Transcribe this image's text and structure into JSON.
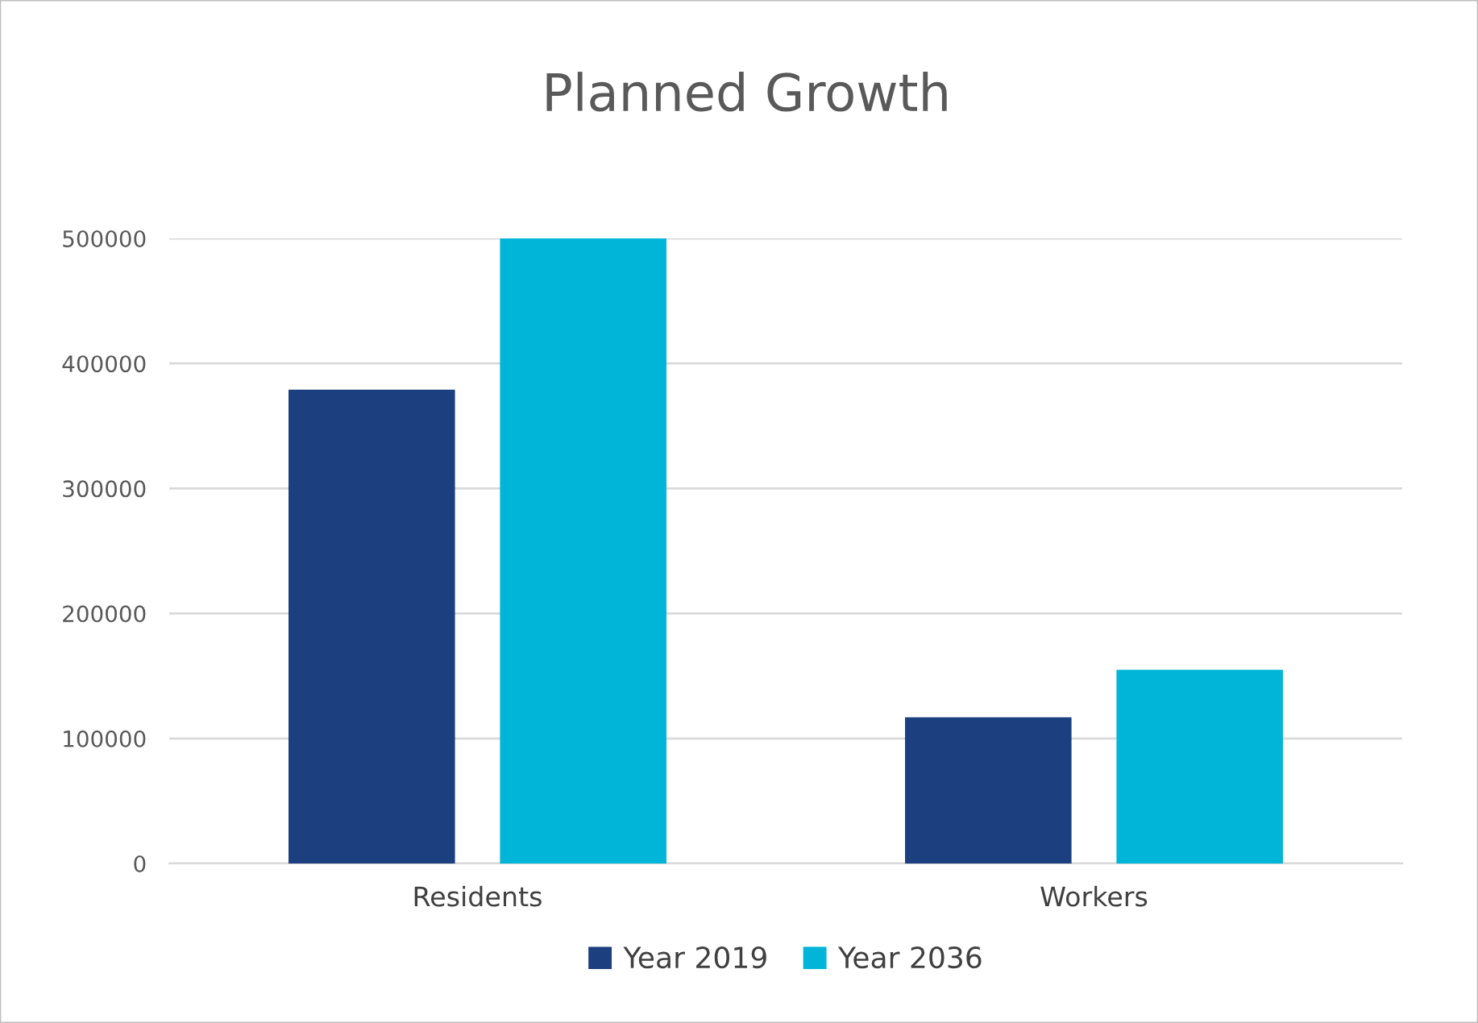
{
  "chart_data": {
    "type": "bar",
    "title": "Planned Growth",
    "categories": [
      "Residents",
      "Workers"
    ],
    "series": [
      {
        "name": "Year 2019",
        "color": "#1b3f7f",
        "values": [
          379000,
          117000
        ]
      },
      {
        "name": "Year 2036",
        "color": "#00b5d8",
        "values": [
          500000,
          155000
        ]
      }
    ],
    "ylim": [
      0,
      500000
    ],
    "yticks": [
      0,
      100000,
      200000,
      300000,
      400000,
      500000
    ],
    "grid": "y",
    "legend": "bottom"
  }
}
